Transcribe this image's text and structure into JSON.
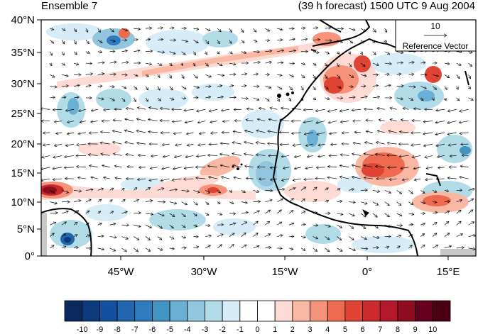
{
  "header": {
    "left_title": "Ensemble 7",
    "right_title": "(39 h forecast) 1500 UTC 9 Aug 2004"
  },
  "map": {
    "lat_labels": [
      "40°N",
      "35°N",
      "30°N",
      "25°N",
      "20°N",
      "15°N",
      "10°N",
      "5°N",
      "0°"
    ],
    "lon_labels": [
      "45°W",
      "30°W",
      "15°W",
      "0°",
      "15°E"
    ],
    "lon_range": [
      -58,
      20
    ],
    "lat_range": [
      0,
      40
    ],
    "reference_vector": {
      "value": "10",
      "label": "Reference Vector"
    }
  },
  "colorbar": {
    "labels": [
      "-10",
      "-9",
      "-8",
      "-7",
      "-6",
      "-5",
      "-4",
      "-3",
      "-2",
      "-1",
      "0",
      "1",
      "2",
      "3",
      "4",
      "5",
      "6",
      "7",
      "8",
      "9",
      "10"
    ],
    "colors": [
      "#0a2a5e",
      "#0d3a7a",
      "#1550a0",
      "#2166ac",
      "#2f7bbe",
      "#4393c3",
      "#6aafd4",
      "#92c5de",
      "#b2dbe8",
      "#d6ecf6",
      "#ffffff",
      "#ffffff",
      "#fddbd4",
      "#f9b8a4",
      "#f6937a",
      "#ee6a50",
      "#e04434",
      "#cc2a2a",
      "#b2182b",
      "#8e0d1e",
      "#67001f",
      "#4a0012"
    ]
  }
}
